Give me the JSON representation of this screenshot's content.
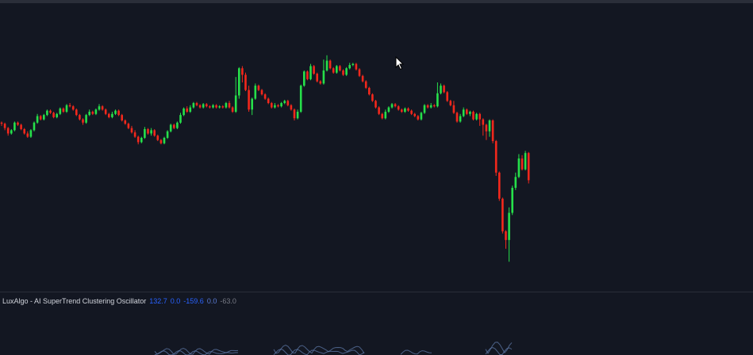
{
  "indicator": {
    "name": "LuxAlgo - AI SuperTrend Clustering Oscillator",
    "values": [
      {
        "text": "132.7",
        "color": "#2962ff"
      },
      {
        "text": "0.0",
        "color": "#2962ff"
      },
      {
        "text": "-159.6",
        "color": "#2962ff"
      },
      {
        "text": "0.0",
        "color": "#5b7bd5"
      },
      {
        "text": "-63.0",
        "color": "#787b86"
      }
    ]
  },
  "colors": {
    "background": "#131722",
    "up": "#26e04a",
    "down": "#f2281c",
    "oscillator": "#5f7aa8"
  },
  "chart_data": {
    "type": "candlestick",
    "series": [
      {
        "name": "price",
        "up_color": "#26e04a",
        "down_color": "#f2281c"
      }
    ],
    "ohlc": [
      [
        138,
        137,
        139,
        135
      ],
      [
        137,
        133,
        138,
        131
      ],
      [
        133,
        128,
        134,
        126
      ],
      [
        128,
        131,
        132,
        127
      ],
      [
        131,
        138,
        139,
        130
      ],
      [
        138,
        136,
        139,
        135
      ],
      [
        136,
        132,
        137,
        131
      ],
      [
        132,
        128,
        133,
        127
      ],
      [
        128,
        125,
        130,
        124
      ],
      [
        125,
        131,
        132,
        124
      ],
      [
        131,
        138,
        139,
        130
      ],
      [
        138,
        144,
        146,
        137
      ],
      [
        144,
        141,
        145,
        140
      ],
      [
        141,
        145,
        146,
        140
      ],
      [
        145,
        149,
        150,
        144
      ],
      [
        149,
        147,
        150,
        146
      ],
      [
        147,
        143,
        148,
        142
      ],
      [
        143,
        146,
        147,
        142
      ],
      [
        146,
        151,
        152,
        145
      ],
      [
        151,
        148,
        152,
        147
      ],
      [
        148,
        154,
        155,
        147
      ],
      [
        154,
        153,
        156,
        152
      ],
      [
        153,
        150,
        154,
        149
      ],
      [
        150,
        145,
        151,
        144
      ],
      [
        145,
        141,
        146,
        140
      ],
      [
        141,
        138,
        142,
        136
      ],
      [
        138,
        145,
        146,
        137
      ],
      [
        145,
        148,
        150,
        144
      ],
      [
        148,
        146,
        149,
        145
      ],
      [
        146,
        150,
        151,
        145
      ],
      [
        150,
        153,
        155,
        149
      ],
      [
        153,
        150,
        154,
        149
      ],
      [
        150,
        146,
        151,
        145
      ],
      [
        146,
        143,
        147,
        142
      ],
      [
        143,
        146,
        148,
        142
      ],
      [
        146,
        149,
        150,
        145
      ],
      [
        149,
        145,
        150,
        144
      ],
      [
        145,
        140,
        146,
        139
      ],
      [
        140,
        137,
        141,
        136
      ],
      [
        137,
        133,
        138,
        132
      ],
      [
        133,
        129,
        135,
        128
      ],
      [
        129,
        125,
        131,
        124
      ],
      [
        125,
        120,
        126,
        118
      ],
      [
        120,
        124,
        125,
        119
      ],
      [
        124,
        132,
        134,
        123
      ],
      [
        132,
        128,
        133,
        127
      ],
      [
        128,
        131,
        133,
        126
      ],
      [
        131,
        126,
        132,
        125
      ],
      [
        126,
        122,
        127,
        121
      ],
      [
        122,
        119,
        123,
        118
      ],
      [
        119,
        124,
        125,
        118
      ],
      [
        124,
        130,
        131,
        123
      ],
      [
        130,
        136,
        137,
        129
      ],
      [
        136,
        133,
        137,
        132
      ],
      [
        133,
        138,
        139,
        132
      ],
      [
        138,
        145,
        147,
        137
      ],
      [
        145,
        151,
        152,
        144
      ],
      [
        151,
        148,
        153,
        147
      ],
      [
        148,
        152,
        154,
        147
      ],
      [
        152,
        156,
        157,
        151
      ],
      [
        156,
        154,
        157,
        153
      ],
      [
        154,
        152,
        155,
        151
      ],
      [
        152,
        155,
        156,
        151
      ],
      [
        155,
        153,
        156,
        152
      ],
      [
        153,
        152,
        154,
        151
      ],
      [
        152,
        154,
        155,
        151
      ],
      [
        154,
        152,
        155,
        151
      ],
      [
        152,
        153,
        154,
        151
      ],
      [
        153,
        152,
        154,
        151
      ],
      [
        152,
        156,
        157,
        151
      ],
      [
        156,
        152,
        158,
        151
      ],
      [
        152,
        148,
        153,
        147
      ],
      [
        148,
        163,
        180,
        147
      ],
      [
        163,
        188,
        189,
        160
      ],
      [
        188,
        182,
        190,
        175
      ],
      [
        182,
        168,
        184,
        167
      ],
      [
        168,
        150,
        172,
        148
      ],
      [
        150,
        160,
        161,
        145
      ],
      [
        160,
        172,
        174,
        159
      ],
      [
        172,
        168,
        173,
        167
      ],
      [
        168,
        164,
        169,
        163
      ],
      [
        164,
        160,
        165,
        159
      ],
      [
        160,
        156,
        161,
        155
      ],
      [
        156,
        152,
        157,
        151
      ],
      [
        152,
        154,
        156,
        151
      ],
      [
        154,
        153,
        155,
        152
      ],
      [
        153,
        156,
        157,
        152
      ],
      [
        156,
        158,
        159,
        155
      ],
      [
        158,
        154,
        159,
        153
      ],
      [
        154,
        150,
        155,
        149
      ],
      [
        150,
        142,
        151,
        140
      ],
      [
        142,
        148,
        150,
        141
      ],
      [
        148,
        172,
        173,
        147
      ],
      [
        172,
        185,
        186,
        171
      ],
      [
        185,
        178,
        186,
        177
      ],
      [
        178,
        190,
        192,
        177
      ],
      [
        190,
        183,
        191,
        182
      ],
      [
        183,
        176,
        184,
        175
      ],
      [
        176,
        174,
        177,
        173
      ],
      [
        174,
        186,
        196,
        173
      ],
      [
        186,
        195,
        200,
        185
      ],
      [
        195,
        188,
        196,
        187
      ],
      [
        188,
        184,
        189,
        183
      ],
      [
        184,
        190,
        191,
        183
      ],
      [
        190,
        186,
        191,
        185
      ],
      [
        186,
        182,
        187,
        181
      ],
      [
        182,
        188,
        189,
        181
      ],
      [
        188,
        191,
        193,
        187
      ],
      [
        191,
        192,
        193,
        190
      ],
      [
        192,
        187,
        193,
        186
      ],
      [
        187,
        181,
        188,
        180
      ],
      [
        181,
        176,
        182,
        175
      ],
      [
        176,
        170,
        177,
        169
      ],
      [
        170,
        164,
        171,
        163
      ],
      [
        164,
        158,
        165,
        157
      ],
      [
        158,
        152,
        159,
        151
      ],
      [
        152,
        146,
        153,
        145
      ],
      [
        146,
        142,
        147,
        141
      ],
      [
        142,
        148,
        150,
        141
      ],
      [
        148,
        152,
        153,
        147
      ],
      [
        152,
        155,
        156,
        151
      ],
      [
        155,
        153,
        156,
        152
      ],
      [
        153,
        150,
        154,
        149
      ],
      [
        150,
        148,
        151,
        147
      ],
      [
        148,
        151,
        152,
        147
      ],
      [
        151,
        149,
        152,
        148
      ],
      [
        149,
        146,
        150,
        145
      ],
      [
        146,
        144,
        147,
        143
      ],
      [
        144,
        141,
        145,
        140
      ],
      [
        141,
        147,
        148,
        140
      ],
      [
        147,
        154,
        155,
        146
      ],
      [
        154,
        152,
        155,
        151
      ],
      [
        152,
        154,
        156,
        151
      ],
      [
        154,
        153,
        155,
        152
      ],
      [
        153,
        165,
        175,
        152
      ],
      [
        165,
        172,
        174,
        164
      ],
      [
        172,
        166,
        173,
        165
      ],
      [
        166,
        158,
        167,
        157
      ],
      [
        158,
        154,
        159,
        153
      ],
      [
        154,
        147,
        158,
        146
      ],
      [
        147,
        139,
        148,
        138
      ],
      [
        139,
        144,
        146,
        138
      ],
      [
        144,
        150,
        152,
        143
      ],
      [
        150,
        146,
        151,
        145
      ],
      [
        146,
        148,
        149,
        144
      ],
      [
        148,
        141,
        149,
        140
      ],
      [
        141,
        146,
        147,
        140
      ],
      [
        146,
        141,
        147,
        135
      ],
      [
        141,
        136,
        142,
        126
      ],
      [
        136,
        130,
        137,
        122
      ],
      [
        130,
        140,
        141,
        125
      ],
      [
        140,
        121,
        141,
        119
      ],
      [
        121,
        92,
        122,
        89
      ],
      [
        92,
        68,
        93,
        66
      ],
      [
        68,
        38,
        69,
        36
      ],
      [
        38,
        30,
        39,
        22
      ],
      [
        30,
        55,
        60,
        10
      ],
      [
        55,
        78,
        80,
        53
      ],
      [
        78,
        88,
        92,
        76
      ],
      [
        88,
        105,
        109,
        87
      ],
      [
        105,
        95,
        108,
        94
      ],
      [
        95,
        110,
        112,
        94
      ],
      [
        110,
        85,
        111,
        82
      ]
    ],
    "ylim": [
      0,
      210
    ]
  }
}
